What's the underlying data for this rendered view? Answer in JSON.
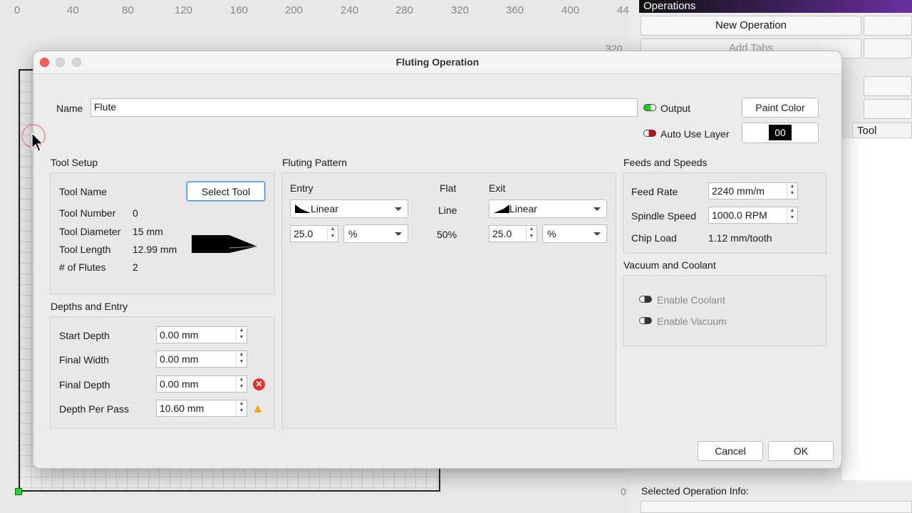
{
  "ruler": {
    "x_ticks": [
      "0",
      "40",
      "80",
      "120",
      "160",
      "200",
      "240",
      "280",
      "320",
      "360",
      "400",
      "44"
    ],
    "y_tick_320": "320",
    "y_tick_0": "0"
  },
  "right_panel": {
    "title": "Operations",
    "new_operation": "New Operation",
    "add_tabs": "Add Tabs",
    "column_tool": "Tool",
    "selected_info": "Selected Operation Info:",
    "accent": "#6a2fa0"
  },
  "dialog": {
    "title": "Fluting Operation",
    "name_label": "Name",
    "name_value": "Flute",
    "output_label": "Output",
    "output_on": true,
    "auto_layer_label": "Auto Use Layer",
    "auto_layer_on": false,
    "paint_color": "Paint Color",
    "layer_value": "00",
    "tool_setup": {
      "title": "Tool Setup",
      "tool_name_label": "Tool Name",
      "select_tool": "Select Tool",
      "tool_number_label": "Tool Number",
      "tool_number": "0",
      "tool_diameter_label": "Tool Diameter",
      "tool_diameter": "15 mm",
      "tool_length_label": "Tool Length",
      "tool_length": "12.99 mm",
      "flutes_label": "# of Flutes",
      "flutes": "2"
    },
    "depths": {
      "title": "Depths and Entry",
      "start_label": "Start Depth",
      "start": "0.00 mm",
      "width_label": "Final Width",
      "width": "0.00 mm",
      "final_label": "Final Depth",
      "final": "0.00 mm",
      "pass_label": "Depth Per Pass",
      "pass": "10.60 mm"
    },
    "pattern": {
      "title": "Fluting Pattern",
      "entry_label": "Entry",
      "flat_label": "Flat",
      "exit_label": "Exit",
      "entry_type": "Linear",
      "flat_type": "Line",
      "exit_type": "Linear",
      "entry_value": "25.0",
      "entry_unit": "%",
      "flat_value": "50%",
      "exit_value": "25.0",
      "exit_unit": "%"
    },
    "feeds": {
      "title": "Feeds and Speeds",
      "feed_label": "Feed Rate",
      "feed": "2240 mm/m",
      "spindle_label": "Spindle Speed",
      "spindle": "1000.0 RPM",
      "chip_label": "Chip Load",
      "chip": "1.12 mm/tooth"
    },
    "vacuum": {
      "title": "Vacuum and Coolant",
      "coolant": "Enable Coolant",
      "vacuum": "Enable Vacuum"
    },
    "cancel": "Cancel",
    "ok": "OK"
  }
}
